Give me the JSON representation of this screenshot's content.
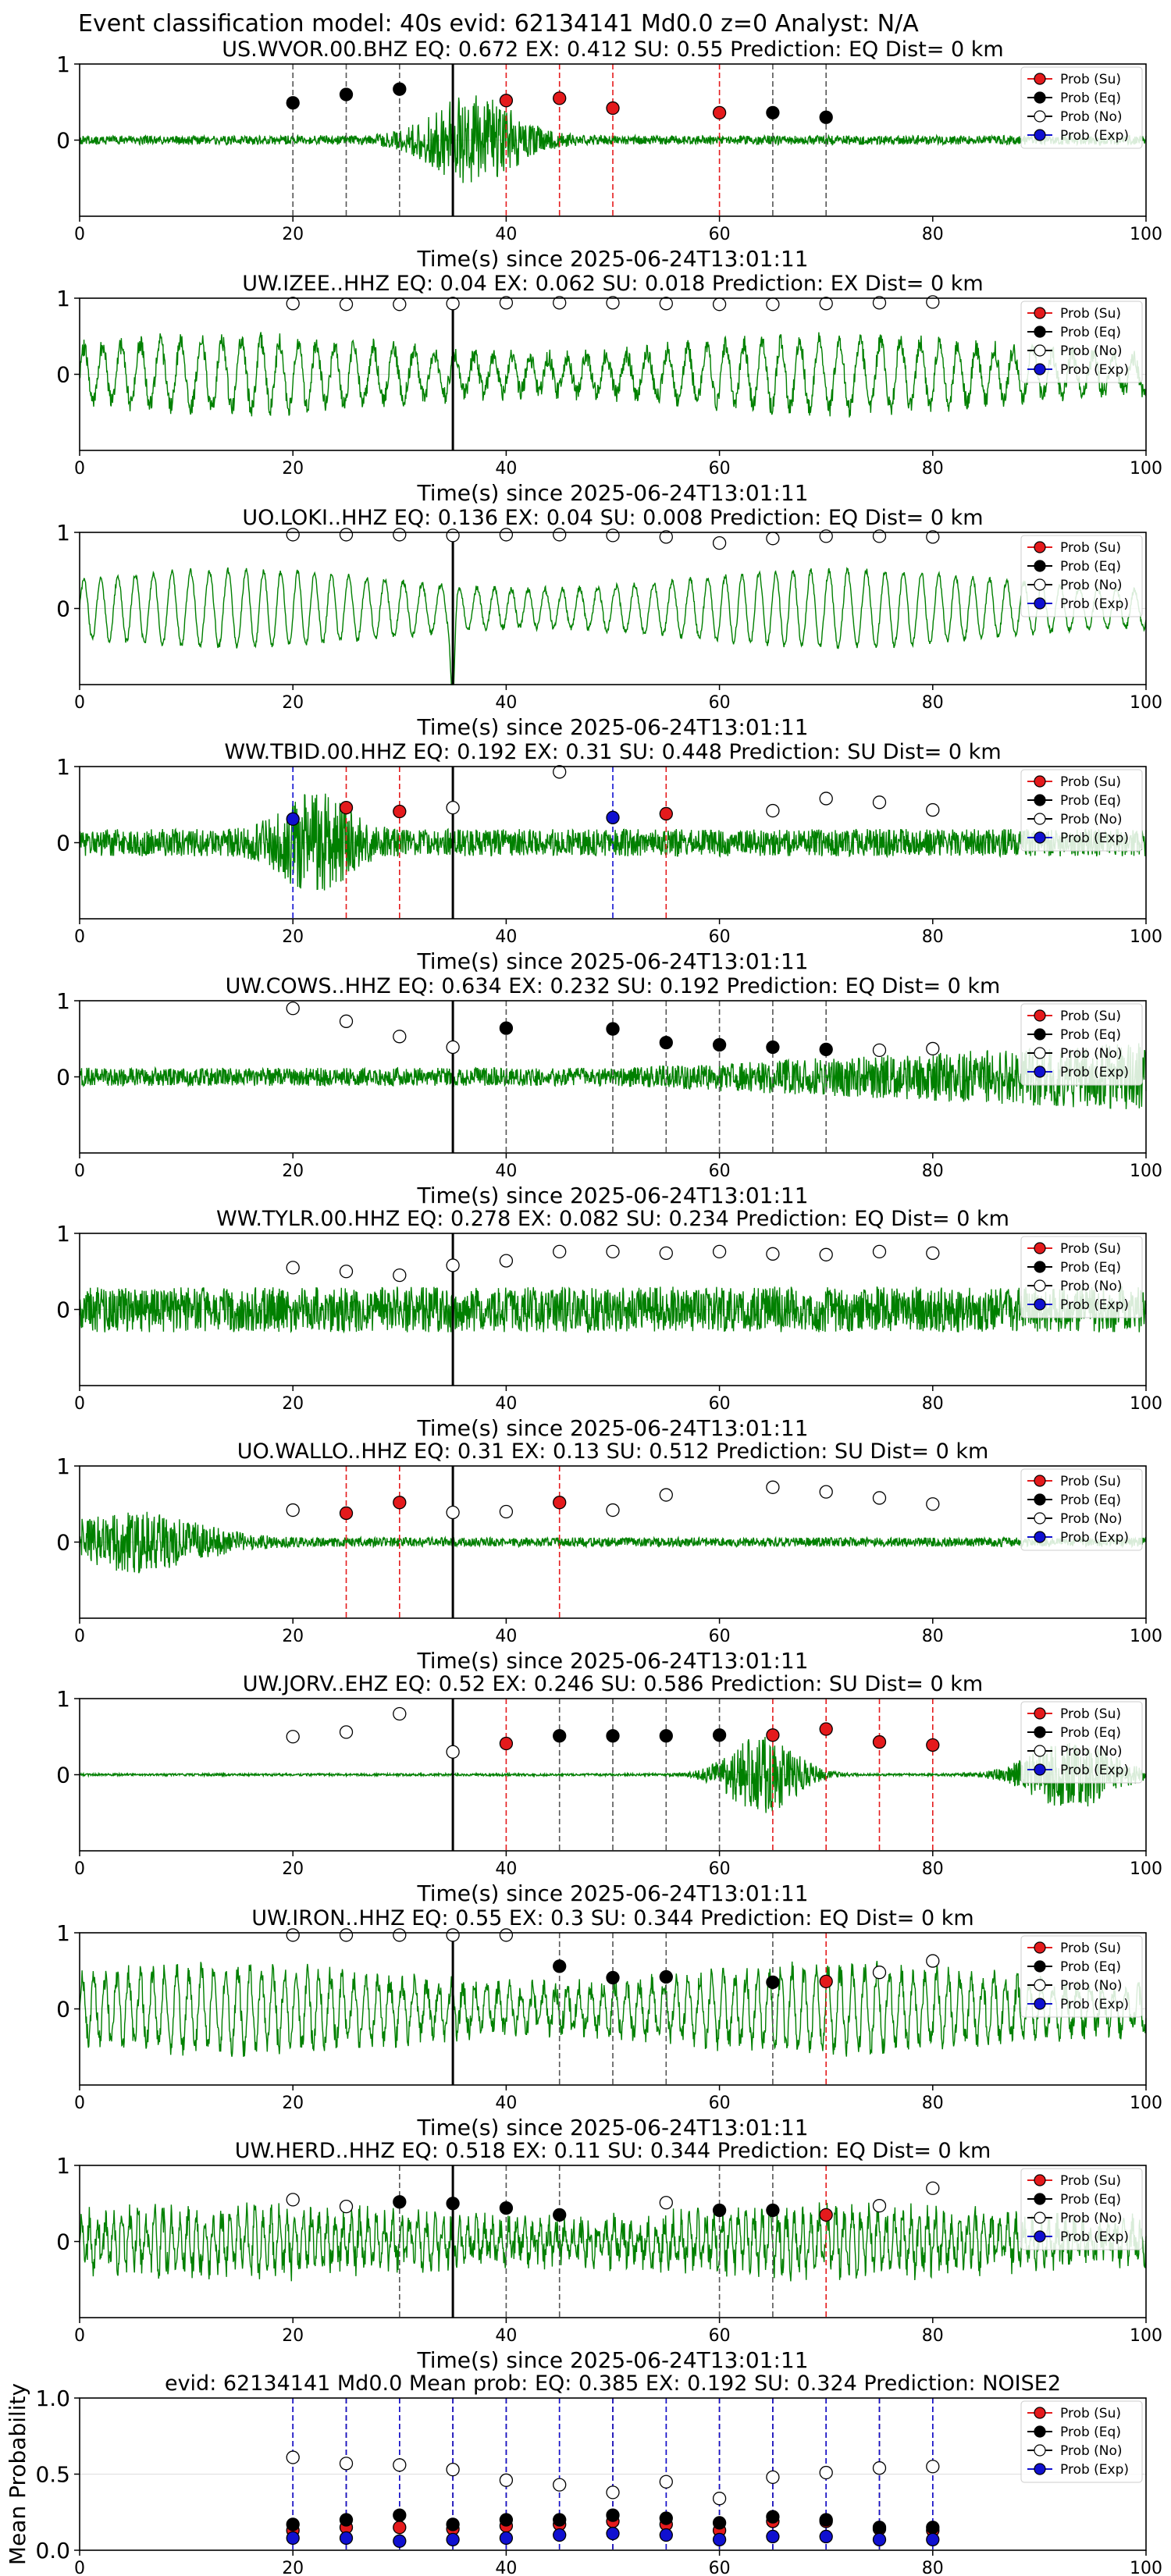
{
  "figure_title": "Event classification model: 40s evid: 62134141 Md0.0 z=0 Analyst: N/A",
  "legend_labels": [
    "Prob (Su)",
    "Prob (Eq)",
    "Prob (No)",
    "Prob (Exp)"
  ],
  "colors": {
    "su": "#e41a1c",
    "eq": "#000000",
    "no": "#ffffff",
    "exp": "#1010d0",
    "waveform": "#008000",
    "pick": "#000000",
    "grid": "#dddddd"
  },
  "chart_data": [
    {
      "type": "line",
      "title": "US.WVOR.00.BHZ   EQ: 0.672  EX: 0.412  SU: 0.55   Prediction: EQ    Dist= 0 km",
      "xlabel": "Time(s) since 2025-06-24T13:01:11",
      "ylabel": "",
      "xlim": [
        0,
        100
      ],
      "ylim": [
        -1,
        1
      ],
      "x_ticks": [
        "0",
        "20",
        "40",
        "60",
        "80",
        "100"
      ],
      "y_ticks": [
        "0",
        "1"
      ],
      "pick_time": 35,
      "waveform": {
        "style": "burst",
        "amp": 0.06,
        "burst_at": 37,
        "burst_amp": 0.55,
        "burst_width": 5,
        "seed": 1
      },
      "series": [
        {
          "name": "Prob (Su)",
          "x": [
            40,
            45,
            50,
            60
          ],
          "y": [
            0.52,
            0.55,
            0.42,
            0.36
          ]
        },
        {
          "name": "Prob (Eq)",
          "x": [
            20,
            25,
            30,
            65,
            70
          ],
          "y": [
            0.49,
            0.6,
            0.67,
            0.36,
            0.3
          ]
        },
        {
          "name": "Prob (No)",
          "x": [],
          "y": []
        },
        {
          "name": "Prob (Exp)",
          "x": [],
          "y": []
        }
      ]
    },
    {
      "type": "line",
      "title": "UW.IZEE..HHZ   EQ: 0.04  EX: 0.062  SU: 0.018   Prediction: EX    Dist= 0 km",
      "xlabel": "Time(s) since 2025-06-24T13:01:11",
      "ylabel": "",
      "xlim": [
        0,
        100
      ],
      "ylim": [
        -1,
        1
      ],
      "x_ticks": [
        "0",
        "20",
        "40",
        "60",
        "80",
        "100"
      ],
      "y_ticks": [
        "0",
        "1"
      ],
      "pick_time": 35,
      "waveform": {
        "style": "osc",
        "amp": 0.45,
        "freq": 0.55,
        "noise": 0.12,
        "seed": 2
      },
      "series": [
        {
          "name": "Prob (Su)",
          "x": [],
          "y": []
        },
        {
          "name": "Prob (Eq)",
          "x": [],
          "y": []
        },
        {
          "name": "Prob (No)",
          "x": [
            20,
            25,
            30,
            35,
            40,
            45,
            50,
            55,
            60,
            65,
            70,
            75,
            80
          ],
          "y": [
            0.93,
            0.92,
            0.92,
            0.93,
            0.94,
            0.94,
            0.94,
            0.93,
            0.92,
            0.92,
            0.93,
            0.94,
            0.95
          ]
        },
        {
          "name": "Prob (Exp)",
          "x": [],
          "y": []
        }
      ]
    },
    {
      "type": "line",
      "title": "UO.LOKI..HHZ   EQ: 0.136  EX: 0.04  SU: 0.008   Prediction: EQ    Dist= 0 km",
      "xlabel": "Time(s) since 2025-06-24T13:01:11",
      "ylabel": "",
      "xlim": [
        0,
        100
      ],
      "ylim": [
        -1,
        1
      ],
      "x_ticks": [
        "0",
        "20",
        "40",
        "60",
        "80",
        "100"
      ],
      "y_ticks": [
        "0",
        "1"
      ],
      "pick_time": 35,
      "waveform": {
        "style": "osc",
        "amp": 0.5,
        "freq": 0.6,
        "noise": 0.04,
        "seed": 3,
        "spike_at": 35
      },
      "series": [
        {
          "name": "Prob (Su)",
          "x": [],
          "y": []
        },
        {
          "name": "Prob (Eq)",
          "x": [],
          "y": []
        },
        {
          "name": "Prob (No)",
          "x": [
            20,
            25,
            30,
            35,
            40,
            45,
            50,
            55,
            60,
            65,
            70,
            75,
            80
          ],
          "y": [
            0.97,
            0.97,
            0.97,
            0.96,
            0.97,
            0.97,
            0.96,
            0.94,
            0.86,
            0.92,
            0.95,
            0.95,
            0.94
          ]
        },
        {
          "name": "Prob (Exp)",
          "x": [],
          "y": []
        }
      ]
    },
    {
      "type": "line",
      "title": "WW.TBID.00.HHZ   EQ: 0.192  EX: 0.31  SU: 0.448   Prediction: SU    Dist= 0 km",
      "xlabel": "Time(s) since 2025-06-24T13:01:11",
      "ylabel": "",
      "xlim": [
        0,
        100
      ],
      "ylim": [
        -1,
        1
      ],
      "x_ticks": [
        "0",
        "20",
        "40",
        "60",
        "80",
        "100"
      ],
      "y_ticks": [
        "0",
        "1"
      ],
      "pick_time": 35,
      "waveform": {
        "style": "burst",
        "amp": 0.18,
        "burst_at": 22,
        "burst_amp": 0.5,
        "burst_width": 4,
        "seed": 4
      },
      "series": [
        {
          "name": "Prob (Su)",
          "x": [
            25,
            30,
            55
          ],
          "y": [
            0.46,
            0.41,
            0.38
          ]
        },
        {
          "name": "Prob (Eq)",
          "x": [],
          "y": []
        },
        {
          "name": "Prob (No)",
          "x": [
            35,
            45,
            65,
            70,
            75,
            80
          ],
          "y": [
            0.46,
            0.93,
            0.42,
            0.58,
            0.53,
            0.43
          ]
        },
        {
          "name": "Prob (Exp)",
          "x": [
            20,
            50
          ],
          "y": [
            0.31,
            0.33
          ]
        }
      ]
    },
    {
      "type": "line",
      "title": "UW.COWS..HHZ   EQ: 0.634  EX: 0.232  SU: 0.192   Prediction: EQ    Dist= 0 km",
      "xlabel": "Time(s) since 2025-06-24T13:01:11",
      "ylabel": "",
      "xlim": [
        0,
        100
      ],
      "ylim": [
        -1,
        1
      ],
      "x_ticks": [
        "0",
        "20",
        "40",
        "60",
        "80",
        "100"
      ],
      "y_ticks": [
        "0",
        "1"
      ],
      "pick_time": 35,
      "waveform": {
        "style": "grow",
        "amp": 0.12,
        "grow_to": 0.45,
        "seed": 5
      },
      "series": [
        {
          "name": "Prob (Su)",
          "x": [],
          "y": []
        },
        {
          "name": "Prob (Eq)",
          "x": [
            40,
            50,
            55,
            60,
            65,
            70
          ],
          "y": [
            0.64,
            0.63,
            0.45,
            0.42,
            0.39,
            0.36
          ]
        },
        {
          "name": "Prob (No)",
          "x": [
            20,
            25,
            30,
            35,
            75,
            80
          ],
          "y": [
            0.9,
            0.73,
            0.53,
            0.39,
            0.35,
            0.37
          ]
        },
        {
          "name": "Prob (Exp)",
          "x": [],
          "y": []
        }
      ]
    },
    {
      "type": "line",
      "title": "WW.TYLR.00.HHZ   EQ: 0.278  EX: 0.082  SU: 0.234   Prediction: EQ    Dist= 0 km",
      "xlabel": "Time(s) since 2025-06-24T13:01:11",
      "ylabel": "",
      "xlim": [
        0,
        100
      ],
      "ylim": [
        -1,
        1
      ],
      "x_ticks": [
        "0",
        "20",
        "40",
        "60",
        "80",
        "100"
      ],
      "y_ticks": [
        "0",
        "1"
      ],
      "pick_time": 35,
      "waveform": {
        "style": "noise",
        "amp": 0.3,
        "seed": 6
      },
      "series": [
        {
          "name": "Prob (Su)",
          "x": [],
          "y": []
        },
        {
          "name": "Prob (Eq)",
          "x": [],
          "y": []
        },
        {
          "name": "Prob (No)",
          "x": [
            20,
            25,
            30,
            35,
            40,
            45,
            50,
            55,
            60,
            65,
            70,
            75,
            80
          ],
          "y": [
            0.55,
            0.5,
            0.45,
            0.58,
            0.64,
            0.76,
            0.76,
            0.74,
            0.76,
            0.73,
            0.72,
            0.76,
            0.74
          ]
        },
        {
          "name": "Prob (Exp)",
          "x": [],
          "y": []
        }
      ]
    },
    {
      "type": "line",
      "title": "UO.WALLO..HHZ   EQ: 0.31  EX: 0.13  SU: 0.512   Prediction: SU    Dist= 0 km",
      "xlabel": "Time(s) since 2025-06-24T13:01:11",
      "ylabel": "",
      "xlim": [
        0,
        100
      ],
      "ylim": [
        -1,
        1
      ],
      "x_ticks": [
        "0",
        "20",
        "40",
        "60",
        "80",
        "100"
      ],
      "y_ticks": [
        "0",
        "1"
      ],
      "pick_time": 35,
      "waveform": {
        "style": "burst",
        "amp": 0.06,
        "burst_at": 5,
        "burst_amp": 0.35,
        "burst_width": 8,
        "seed": 7
      },
      "series": [
        {
          "name": "Prob (Su)",
          "x": [
            25,
            30,
            45
          ],
          "y": [
            0.38,
            0.52,
            0.52
          ]
        },
        {
          "name": "Prob (Eq)",
          "x": [],
          "y": []
        },
        {
          "name": "Prob (No)",
          "x": [
            20,
            35,
            40,
            50,
            55,
            65,
            70,
            75,
            80
          ],
          "y": [
            0.42,
            0.39,
            0.4,
            0.42,
            0.62,
            0.72,
            0.66,
            0.58,
            0.5
          ]
        },
        {
          "name": "Prob (Exp)",
          "x": [],
          "y": []
        }
      ]
    },
    {
      "type": "line",
      "title": "UW.JORV..EHZ   EQ: 0.52  EX: 0.246  SU: 0.586   Prediction: SU    Dist= 0 km",
      "xlabel": "Time(s) since 2025-06-24T13:01:11",
      "ylabel": "",
      "xlim": [
        0,
        100
      ],
      "ylim": [
        -1,
        1
      ],
      "x_ticks": [
        "0",
        "20",
        "40",
        "60",
        "80",
        "100"
      ],
      "y_ticks": [
        "0",
        "1"
      ],
      "pick_time": 35,
      "waveform": {
        "style": "twoburst",
        "amp": 0.015,
        "burst_at": 64,
        "burst_amp": 0.5,
        "burst_width": 4,
        "burst2_at": 93,
        "burst2_amp": 0.45,
        "burst2_width": 5,
        "seed": 8
      },
      "series": [
        {
          "name": "Prob (Su)",
          "x": [
            40,
            65,
            70,
            75,
            80
          ],
          "y": [
            0.41,
            0.52,
            0.6,
            0.43,
            0.39
          ]
        },
        {
          "name": "Prob (Eq)",
          "x": [
            45,
            50,
            55,
            60
          ],
          "y": [
            0.51,
            0.51,
            0.51,
            0.52
          ]
        },
        {
          "name": "Prob (No)",
          "x": [
            20,
            25,
            30,
            35
          ],
          "y": [
            0.5,
            0.56,
            0.8,
            0.3
          ]
        },
        {
          "name": "Prob (Exp)",
          "x": [],
          "y": []
        }
      ]
    },
    {
      "type": "line",
      "title": "UW.IRON..HHZ   EQ: 0.55  EX: 0.3  SU: 0.344   Prediction: EQ    Dist= 0 km",
      "xlabel": "Time(s) since 2025-06-24T13:01:11",
      "ylabel": "",
      "xlim": [
        0,
        100
      ],
      "ylim": [
        -1,
        1
      ],
      "x_ticks": [
        "0",
        "20",
        "40",
        "60",
        "80",
        "100"
      ],
      "y_ticks": [
        "0",
        "1"
      ],
      "pick_time": 35,
      "waveform": {
        "style": "osc",
        "amp": 0.5,
        "freq": 0.9,
        "noise": 0.15,
        "seed": 9
      },
      "series": [
        {
          "name": "Prob (Su)",
          "x": [
            70
          ],
          "y": [
            0.36
          ]
        },
        {
          "name": "Prob (Eq)",
          "x": [
            45,
            50,
            55,
            65
          ],
          "y": [
            0.56,
            0.41,
            0.42,
            0.35
          ]
        },
        {
          "name": "Prob (No)",
          "x": [
            20,
            25,
            30,
            35,
            40,
            75,
            80
          ],
          "y": [
            0.97,
            0.97,
            0.97,
            0.97,
            0.97,
            0.48,
            0.63
          ]
        },
        {
          "name": "Prob (Exp)",
          "x": [],
          "y": []
        }
      ]
    },
    {
      "type": "line",
      "title": "UW.HERD..HHZ   EQ: 0.518  EX: 0.11  SU: 0.344   Prediction: EQ    Dist= 0 km",
      "xlabel": "Time(s) since 2025-06-24T13:01:11",
      "ylabel": "",
      "xlim": [
        0,
        100
      ],
      "ylim": [
        -1,
        1
      ],
      "x_ticks": [
        "0",
        "20",
        "40",
        "60",
        "80",
        "100"
      ],
      "y_ticks": [
        "0",
        "1"
      ],
      "pick_time": 35,
      "waveform": {
        "style": "osc",
        "amp": 0.35,
        "freq": 1.3,
        "noise": 0.2,
        "seed": 10
      },
      "series": [
        {
          "name": "Prob (Su)",
          "x": [
            70
          ],
          "y": [
            0.35
          ]
        },
        {
          "name": "Prob (Eq)",
          "x": [
            30,
            35,
            40,
            45,
            60,
            65
          ],
          "y": [
            0.52,
            0.5,
            0.44,
            0.35,
            0.41,
            0.41
          ]
        },
        {
          "name": "Prob (No)",
          "x": [
            20,
            25,
            55,
            75,
            80
          ],
          "y": [
            0.55,
            0.46,
            0.51,
            0.47,
            0.7
          ]
        },
        {
          "name": "Prob (Exp)",
          "x": [],
          "y": []
        }
      ]
    },
    {
      "type": "scatter",
      "title": "evid: 62134141   Md0.0   Mean prob:   EQ: 0.385  EX: 0.192  SU: 0.324   Prediction: NOISE2",
      "xlabel": "",
      "ylabel": "Mean Probability",
      "xlim": [
        0,
        100
      ],
      "ylim": [
        0,
        1
      ],
      "x_ticks": [
        "0",
        "20",
        "40",
        "60",
        "80",
        "100"
      ],
      "y_ticks": [
        "0.0",
        "0.5",
        "1.0"
      ],
      "series": [
        {
          "name": "Prob (Su)",
          "x": [
            20,
            25,
            30,
            35,
            40,
            45,
            50,
            55,
            60,
            65,
            70,
            75,
            80
          ],
          "y": [
            0.13,
            0.15,
            0.15,
            0.14,
            0.16,
            0.17,
            0.19,
            0.17,
            0.13,
            0.19,
            0.19,
            0.14,
            0.13
          ]
        },
        {
          "name": "Prob (Eq)",
          "x": [
            20,
            25,
            30,
            35,
            40,
            45,
            50,
            55,
            60,
            65,
            70,
            75,
            80
          ],
          "y": [
            0.17,
            0.2,
            0.23,
            0.17,
            0.2,
            0.2,
            0.23,
            0.21,
            0.18,
            0.22,
            0.2,
            0.15,
            0.15
          ]
        },
        {
          "name": "Prob (No)",
          "x": [
            20,
            25,
            30,
            35,
            40,
            45,
            50,
            55,
            60,
            65,
            70,
            75,
            80
          ],
          "y": [
            0.61,
            0.57,
            0.56,
            0.53,
            0.46,
            0.43,
            0.38,
            0.45,
            0.34,
            0.48,
            0.51,
            0.54,
            0.55
          ]
        },
        {
          "name": "Prob (Exp)",
          "x": [
            20,
            25,
            30,
            35,
            40,
            45,
            50,
            55,
            60,
            65,
            70,
            75,
            80
          ],
          "y": [
            0.08,
            0.08,
            0.06,
            0.07,
            0.08,
            0.1,
            0.11,
            0.1,
            0.07,
            0.09,
            0.09,
            0.07,
            0.07
          ]
        }
      ]
    }
  ]
}
